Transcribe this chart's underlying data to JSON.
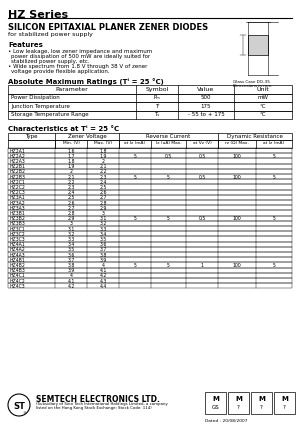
{
  "title": "HZ Series",
  "subtitle": "SILICON EPITAXIAL PLANER ZENER DIODES",
  "for_text": "for stabilized power supply",
  "features_title": "Features",
  "feature1_line1": "Low leakage, low zener impedance and maximum",
  "feature1_line2": "power dissipation of 500 mW are ideally suited for",
  "feature1_line3": "stabilized power supply, etc.",
  "feature2_line1": "Wide spectrum from 1.8 V through 38 V of zener",
  "feature2_line2": "voltage provide flexible application.",
  "abs_max_title": "Absolute Maximum Ratings (Tⁱ = 25 °C)",
  "abs_max_headers": [
    "Parameter",
    "Symbol",
    "Value",
    "Unit"
  ],
  "abs_max_rows": [
    [
      "Power Dissipation",
      "Pₘ",
      "500",
      "mW"
    ],
    [
      "Junction Temperature",
      "Tⁱ",
      "175",
      "°C"
    ],
    [
      "Storage Temperature Range",
      "Tₛ",
      "- 55 to + 175",
      "°C"
    ]
  ],
  "char_title": "Characteristics at Tⁱ = 25 °C",
  "char_rows": [
    [
      "HZ2A1",
      "1.6",
      "1.8",
      "",
      "",
      "",
      "",
      ""
    ],
    [
      "HZ2A2",
      "1.7",
      "1.9",
      "5",
      "0.5",
      "0.5",
      "100",
      "5"
    ],
    [
      "HZ2A3",
      "1.8",
      "2",
      "",
      "",
      "",
      "",
      ""
    ],
    [
      "HZ2B1",
      "1.9",
      "2.1",
      "",
      "",
      "",
      "",
      ""
    ],
    [
      "HZ2B2",
      "2",
      "2.2",
      "",
      "",
      "",
      "",
      ""
    ],
    [
      "HZ2B3",
      "2.1",
      "2.3",
      "5",
      "5",
      "0.5",
      "100",
      "5"
    ],
    [
      "HZ2C1",
      "2.2",
      "2.4",
      "",
      "",
      "",
      "",
      ""
    ],
    [
      "HZ2C2",
      "2.3",
      "2.5",
      "",
      "",
      "",
      "",
      ""
    ],
    [
      "HZ2C3",
      "2.4",
      "2.6",
      "",
      "",
      "",
      "",
      ""
    ],
    [
      "HZ3A1",
      "2.5",
      "2.7",
      "",
      "",
      "",
      "",
      ""
    ],
    [
      "HZ3A2",
      "2.6",
      "2.8",
      "",
      "",
      "",
      "",
      ""
    ],
    [
      "HZ3A3",
      "2.7",
      "2.9",
      "",
      "",
      "",
      "",
      ""
    ],
    [
      "HZ3B1",
      "2.8",
      "3",
      "",
      "",
      "",
      "",
      ""
    ],
    [
      "HZ3B2",
      "2.9",
      "3.1",
      "5",
      "5",
      "0.5",
      "100",
      "5"
    ],
    [
      "HZ3B3",
      "3",
      "3.2",
      "",
      "",
      "",
      "",
      ""
    ],
    [
      "HZ3C1",
      "3.1",
      "3.3",
      "",
      "",
      "",
      "",
      ""
    ],
    [
      "HZ3C2",
      "3.2",
      "3.4",
      "",
      "",
      "",
      "",
      ""
    ],
    [
      "HZ3C3",
      "3.3",
      "3.5",
      "",
      "",
      "",
      "",
      ""
    ],
    [
      "HZ4A1",
      "3.4",
      "3.6",
      "",
      "",
      "",
      "",
      ""
    ],
    [
      "HZ4A2",
      "3.5",
      "3.7",
      "",
      "",
      "",
      "",
      ""
    ],
    [
      "HZ4A3",
      "3.6",
      "3.8",
      "",
      "",
      "",
      "",
      ""
    ],
    [
      "HZ4B1",
      "3.7",
      "3.9",
      "",
      "",
      "",
      "",
      ""
    ],
    [
      "HZ4B2",
      "3.8",
      "4",
      "5",
      "5",
      "1",
      "100",
      "5"
    ],
    [
      "HZ4B3",
      "3.9",
      "4.1",
      "",
      "",
      "",
      "",
      ""
    ],
    [
      "HZ4C1",
      "4",
      "4.2",
      "",
      "",
      "",
      "",
      ""
    ],
    [
      "HZ4C2",
      "4.1",
      "4.3",
      "",
      "",
      "",
      "",
      ""
    ],
    [
      "HZ4C3",
      "4.2",
      "4.4",
      "",
      "",
      "",
      "",
      ""
    ]
  ],
  "bg_color": "#ffffff",
  "footer_company": "SEMTECH ELECTRONICS LTD.",
  "footer_sub1": "(Subsidiary of Sino Tech International Holdings Limited, a company",
  "footer_sub2": "listed on the Hong Kong Stock Exchange: Stock Code: 114)",
  "date_text": "Dated : 20/08/2007"
}
